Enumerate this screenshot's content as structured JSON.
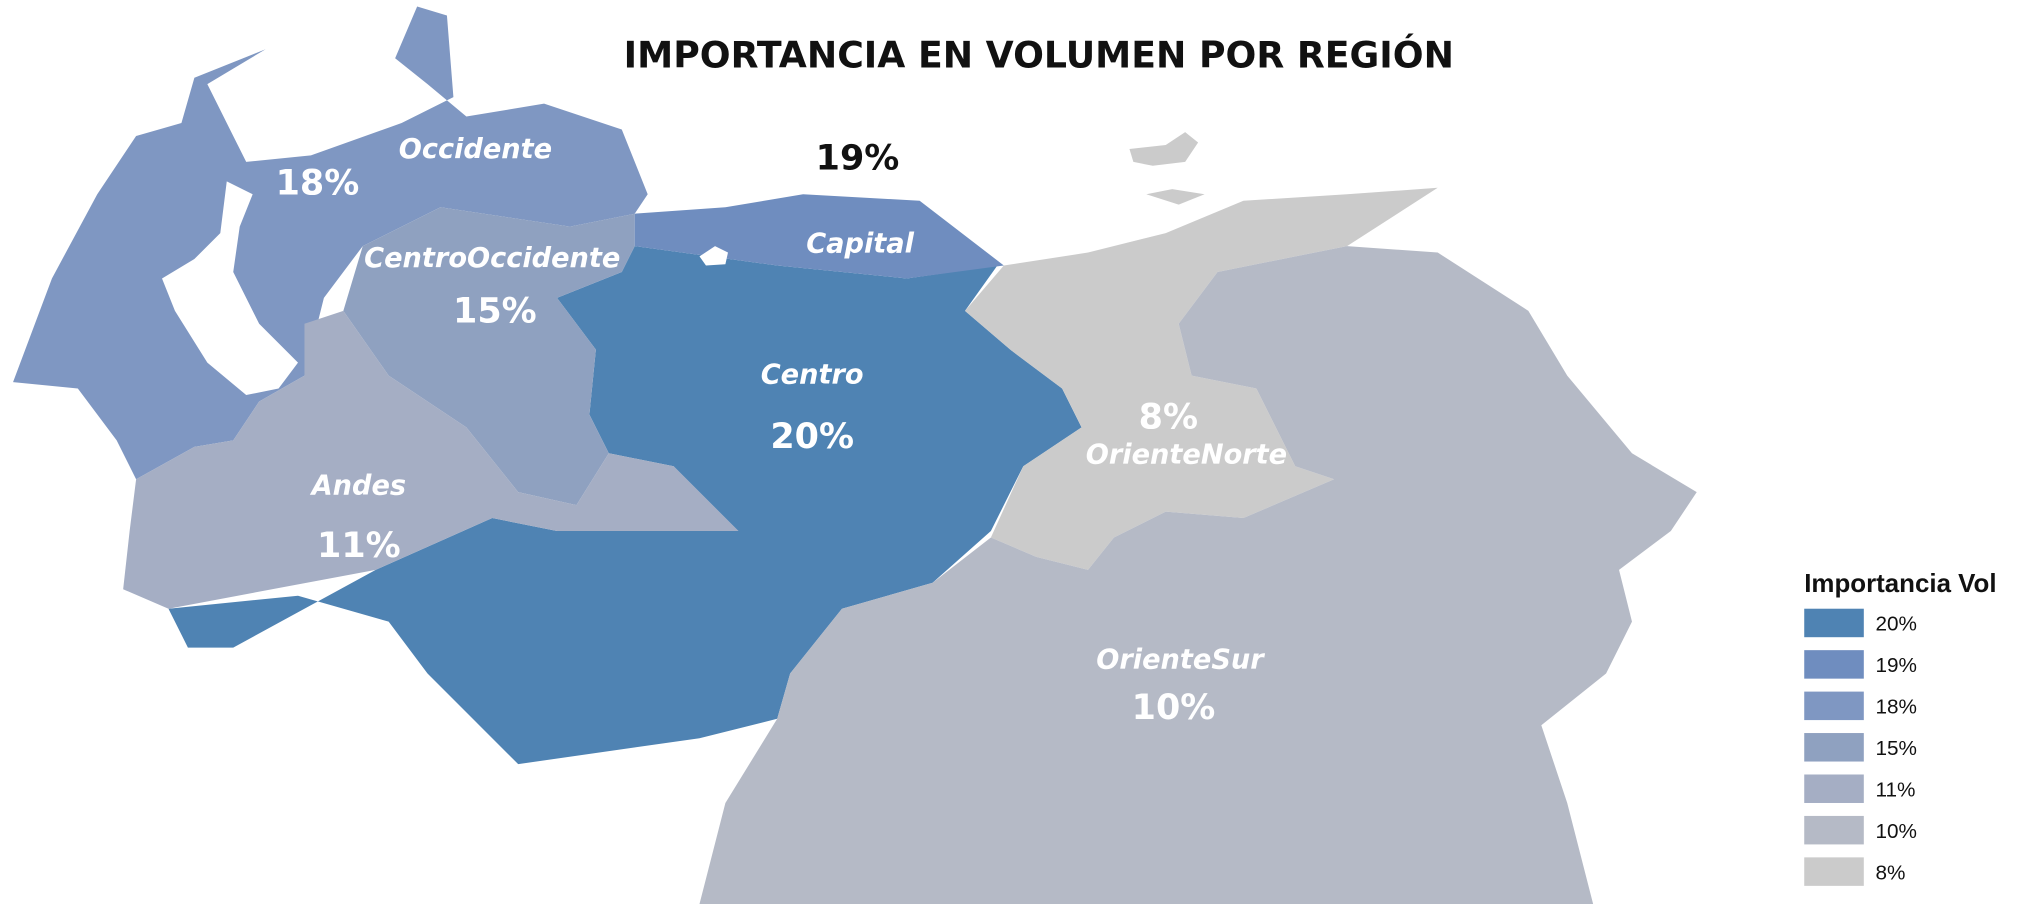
{
  "title": "IMPORTANCIA EN VOLUMEN POR REGIÓN",
  "regions": [
    {
      "name": "Centro",
      "label": "20%",
      "color": "#4f83b3"
    },
    {
      "name": "Occidente",
      "label": "18%",
      "color": "#7f97c2"
    },
    {
      "name": "CentroOccidente",
      "label": "15%",
      "color": "#8fa1c0"
    },
    {
      "name": "Andes",
      "label": "11%",
      "color": "#a5aec4"
    },
    {
      "name": "Capital",
      "label": "19%",
      "color": "#6f8dbf"
    },
    {
      "name": "OrienteNorte",
      "label": "8%",
      "color": "#cbcbcb"
    },
    {
      "name": "OrienteSur",
      "label": "10%",
      "color": "#b5bac6"
    }
  ],
  "legend": {
    "title": "Importancia Vol",
    "items": [
      {
        "label": "20%",
        "color": "#4f83b3"
      },
      {
        "label": "19%",
        "color": "#6f8dbf"
      },
      {
        "label": "18%",
        "color": "#7f97c2"
      },
      {
        "label": "15%",
        "color": "#8fa1c0"
      },
      {
        "label": "11%",
        "color": "#a5aec4"
      },
      {
        "label": "10%",
        "color": "#b5bac6"
      },
      {
        "label": "8%",
        "color": "#cbcbcb"
      }
    ]
  }
}
